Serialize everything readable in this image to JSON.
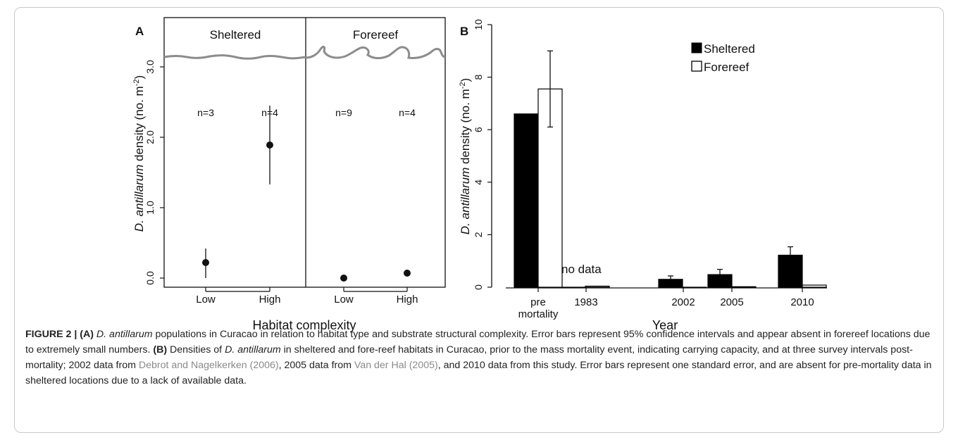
{
  "panelA": {
    "letter": "A",
    "habitat_left": "Sheltered",
    "habitat_right": "Forereef",
    "ylabel_species": "D. antillarum",
    "ylabel_rest": " density (no. m",
    "ylabel_sup": "-2",
    "ylabel_close": ")",
    "xlabel": "Habitat complexity",
    "yticks": [
      "0.0",
      "1.0",
      "2.0",
      "3.0"
    ]
  },
  "panelB": {
    "letter": "B",
    "ylabel_species": "D. antillarum",
    "ylabel_rest": " density (no. m",
    "ylabel_sup": "-2",
    "ylabel_close": ")",
    "xlabel": "Year",
    "yticks": [
      "0",
      "2",
      "4",
      "6",
      "8",
      "10"
    ],
    "xtick_labels": [
      "pre",
      "1983",
      "2002",
      "2005",
      "2010"
    ],
    "xtick_sublabel": "mortality",
    "no_data_label": "no data",
    "legend": [
      "Sheltered",
      "Forereef"
    ]
  },
  "chart_data": [
    {
      "type": "scatter",
      "title": "",
      "xlabel": "Habitat complexity",
      "ylabel": "D. antillarum density (no. m-2)",
      "ylim": [
        -0.15,
        3.85
      ],
      "groups": [
        "Sheltered",
        "Forereef"
      ],
      "categories": [
        "Low",
        "High",
        "Low",
        "High"
      ],
      "points": [
        {
          "habitat": "Sheltered",
          "complexity": "Low",
          "mean": 0.22,
          "ci_low": 0.0,
          "ci_high": 0.42,
          "n_label": "n=3"
        },
        {
          "habitat": "Sheltered",
          "complexity": "High",
          "mean": 1.89,
          "ci_low": 1.33,
          "ci_high": 2.45,
          "n_label": "n=4"
        },
        {
          "habitat": "Forereef",
          "complexity": "Low",
          "mean": 0.0,
          "ci_low": 0.0,
          "ci_high": 0.0,
          "n_label": "n=9"
        },
        {
          "habitat": "Forereef",
          "complexity": "High",
          "mean": 0.07,
          "ci_low": 0.07,
          "ci_high": 0.07,
          "n_label": "n=4"
        }
      ],
      "error_bars": "95% confidence intervals",
      "grid": false
    },
    {
      "type": "bar",
      "title": "",
      "xlabel": "Year",
      "ylabel": "D. antillarum density (no. m-2)",
      "ylim": [
        0,
        10
      ],
      "categories": [
        "pre mortality",
        "1983",
        "2002",
        "2005",
        "2010"
      ],
      "series": [
        {
          "name": "Sheltered",
          "color": "#000000",
          "values": [
            6.6,
            0.0,
            0.3,
            0.48,
            1.22
          ],
          "se": [
            null,
            null,
            0.13,
            0.2,
            0.32
          ]
        },
        {
          "name": "Forereef",
          "color": "#ffffff",
          "values": [
            7.55,
            0.04,
            0.0,
            0.02,
            0.08
          ],
          "se": [
            1.45,
            null,
            null,
            null,
            null
          ]
        }
      ],
      "annotations": [
        "no data"
      ],
      "legend_position": "top-right",
      "grid": false
    }
  ],
  "caption": {
    "label": "FIGURE 2 | (A)",
    "part1": " D. antillarum",
    "part2": " populations in Curacao in relation to habitat type and substrate structural complexity. Error bars represent 95% confidence intervals and appear absent in forereef locations due to extremely small numbers. ",
    "label_b": "(B)",
    "part3": " Densities of ",
    "species": "D. antillarum",
    "part4": " in sheltered and fore-reef habitats in Curacao, prior to the mass mortality event, indicating carrying capacity, and at three survey intervals post-mortality; 2002 data from ",
    "ref1": "Debrot and Nagelkerken (2006)",
    "part5": ", 2005 data from ",
    "ref2": "Van der Hal (2005)",
    "part6": ", and 2010 data from this study. Error bars represent one standard error, and are absent for pre-mortality data in sheltered locations due to a lack of available data."
  }
}
